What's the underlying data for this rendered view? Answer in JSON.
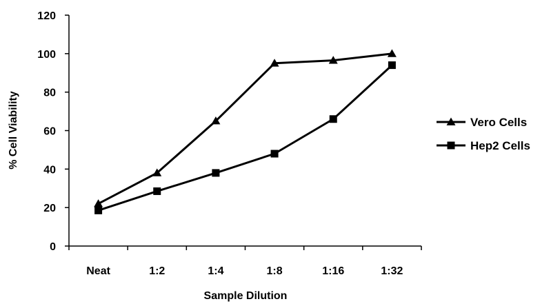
{
  "chart_data": {
    "type": "line",
    "categories": [
      "Neat",
      "1:2",
      "1:4",
      "1:8",
      "1:16",
      "1:32"
    ],
    "series": [
      {
        "name": "Vero Cells",
        "marker": "triangle",
        "values": [
          22,
          38,
          65,
          95,
          96.5,
          100
        ]
      },
      {
        "name": "Hep2 Cells",
        "marker": "square",
        "values": [
          18.5,
          28.5,
          38,
          48,
          66,
          94
        ]
      }
    ],
    "xlabel": "Sample Dilution",
    "ylabel": "% Cell Viability",
    "ylim": [
      0,
      120
    ],
    "yticks": [
      "0",
      "20",
      "40",
      "60",
      "80",
      "100",
      "120"
    ],
    "grid": false,
    "legend_position": "right",
    "line_color": "#000000"
  }
}
